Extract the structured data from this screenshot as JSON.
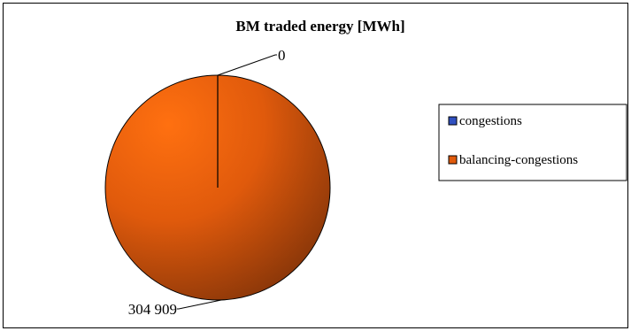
{
  "chart_data": {
    "type": "pie",
    "title": "BM traded energy  [MWh]",
    "series": [
      {
        "name": "",
        "slices": [
          {
            "label": "congestions",
            "value": 0,
            "value_label": "0",
            "color": "#3050c0"
          },
          {
            "label": "balancing-congestions",
            "value": 304909,
            "value_label": "304 909",
            "color": "#e05a0c"
          }
        ]
      }
    ],
    "legend_position": "right",
    "data_labels": true
  },
  "colors": {
    "congestions": "#3050c0",
    "balancing": "#e05a0c",
    "pie_highlight": "#ff7010",
    "pie_shadow": "#7a3008"
  }
}
